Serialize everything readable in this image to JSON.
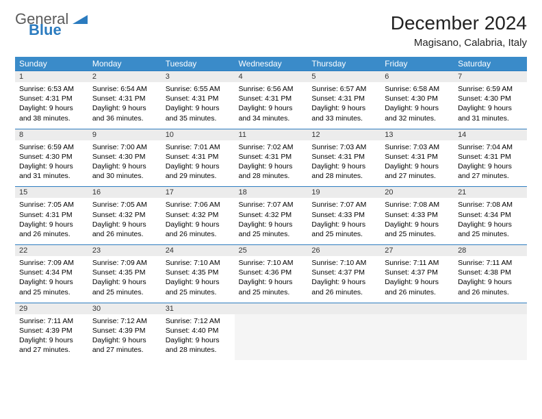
{
  "logo": {
    "text1": "General",
    "text2": "Blue"
  },
  "title": "December 2024",
  "subtitle": "Magisano, Calabria, Italy",
  "colors": {
    "header_bg": "#3a8bc9",
    "header_text": "#ffffff",
    "border": "#2b7bbf",
    "daynum_bg": "#ececec",
    "logo_gray": "#5a5a5a",
    "logo_blue": "#2b7bbf"
  },
  "weekdays": [
    "Sunday",
    "Monday",
    "Tuesday",
    "Wednesday",
    "Thursday",
    "Friday",
    "Saturday"
  ],
  "weeks": [
    [
      {
        "n": "1",
        "sr": "6:53 AM",
        "ss": "4:31 PM",
        "dl": "9 hours and 38 minutes."
      },
      {
        "n": "2",
        "sr": "6:54 AM",
        "ss": "4:31 PM",
        "dl": "9 hours and 36 minutes."
      },
      {
        "n": "3",
        "sr": "6:55 AM",
        "ss": "4:31 PM",
        "dl": "9 hours and 35 minutes."
      },
      {
        "n": "4",
        "sr": "6:56 AM",
        "ss": "4:31 PM",
        "dl": "9 hours and 34 minutes."
      },
      {
        "n": "5",
        "sr": "6:57 AM",
        "ss": "4:31 PM",
        "dl": "9 hours and 33 minutes."
      },
      {
        "n": "6",
        "sr": "6:58 AM",
        "ss": "4:30 PM",
        "dl": "9 hours and 32 minutes."
      },
      {
        "n": "7",
        "sr": "6:59 AM",
        "ss": "4:30 PM",
        "dl": "9 hours and 31 minutes."
      }
    ],
    [
      {
        "n": "8",
        "sr": "6:59 AM",
        "ss": "4:30 PM",
        "dl": "9 hours and 31 minutes."
      },
      {
        "n": "9",
        "sr": "7:00 AM",
        "ss": "4:30 PM",
        "dl": "9 hours and 30 minutes."
      },
      {
        "n": "10",
        "sr": "7:01 AM",
        "ss": "4:31 PM",
        "dl": "9 hours and 29 minutes."
      },
      {
        "n": "11",
        "sr": "7:02 AM",
        "ss": "4:31 PM",
        "dl": "9 hours and 28 minutes."
      },
      {
        "n": "12",
        "sr": "7:03 AM",
        "ss": "4:31 PM",
        "dl": "9 hours and 28 minutes."
      },
      {
        "n": "13",
        "sr": "7:03 AM",
        "ss": "4:31 PM",
        "dl": "9 hours and 27 minutes."
      },
      {
        "n": "14",
        "sr": "7:04 AM",
        "ss": "4:31 PM",
        "dl": "9 hours and 27 minutes."
      }
    ],
    [
      {
        "n": "15",
        "sr": "7:05 AM",
        "ss": "4:31 PM",
        "dl": "9 hours and 26 minutes."
      },
      {
        "n": "16",
        "sr": "7:05 AM",
        "ss": "4:32 PM",
        "dl": "9 hours and 26 minutes."
      },
      {
        "n": "17",
        "sr": "7:06 AM",
        "ss": "4:32 PM",
        "dl": "9 hours and 26 minutes."
      },
      {
        "n": "18",
        "sr": "7:07 AM",
        "ss": "4:32 PM",
        "dl": "9 hours and 25 minutes."
      },
      {
        "n": "19",
        "sr": "7:07 AM",
        "ss": "4:33 PM",
        "dl": "9 hours and 25 minutes."
      },
      {
        "n": "20",
        "sr": "7:08 AM",
        "ss": "4:33 PM",
        "dl": "9 hours and 25 minutes."
      },
      {
        "n": "21",
        "sr": "7:08 AM",
        "ss": "4:34 PM",
        "dl": "9 hours and 25 minutes."
      }
    ],
    [
      {
        "n": "22",
        "sr": "7:09 AM",
        "ss": "4:34 PM",
        "dl": "9 hours and 25 minutes."
      },
      {
        "n": "23",
        "sr": "7:09 AM",
        "ss": "4:35 PM",
        "dl": "9 hours and 25 minutes."
      },
      {
        "n": "24",
        "sr": "7:10 AM",
        "ss": "4:35 PM",
        "dl": "9 hours and 25 minutes."
      },
      {
        "n": "25",
        "sr": "7:10 AM",
        "ss": "4:36 PM",
        "dl": "9 hours and 25 minutes."
      },
      {
        "n": "26",
        "sr": "7:10 AM",
        "ss": "4:37 PM",
        "dl": "9 hours and 26 minutes."
      },
      {
        "n": "27",
        "sr": "7:11 AM",
        "ss": "4:37 PM",
        "dl": "9 hours and 26 minutes."
      },
      {
        "n": "28",
        "sr": "7:11 AM",
        "ss": "4:38 PM",
        "dl": "9 hours and 26 minutes."
      }
    ],
    [
      {
        "n": "29",
        "sr": "7:11 AM",
        "ss": "4:39 PM",
        "dl": "9 hours and 27 minutes."
      },
      {
        "n": "30",
        "sr": "7:12 AM",
        "ss": "4:39 PM",
        "dl": "9 hours and 27 minutes."
      },
      {
        "n": "31",
        "sr": "7:12 AM",
        "ss": "4:40 PM",
        "dl": "9 hours and 28 minutes."
      },
      null,
      null,
      null,
      null
    ]
  ],
  "labels": {
    "sunrise": "Sunrise: ",
    "sunset": "Sunset: ",
    "daylight": "Daylight: "
  }
}
